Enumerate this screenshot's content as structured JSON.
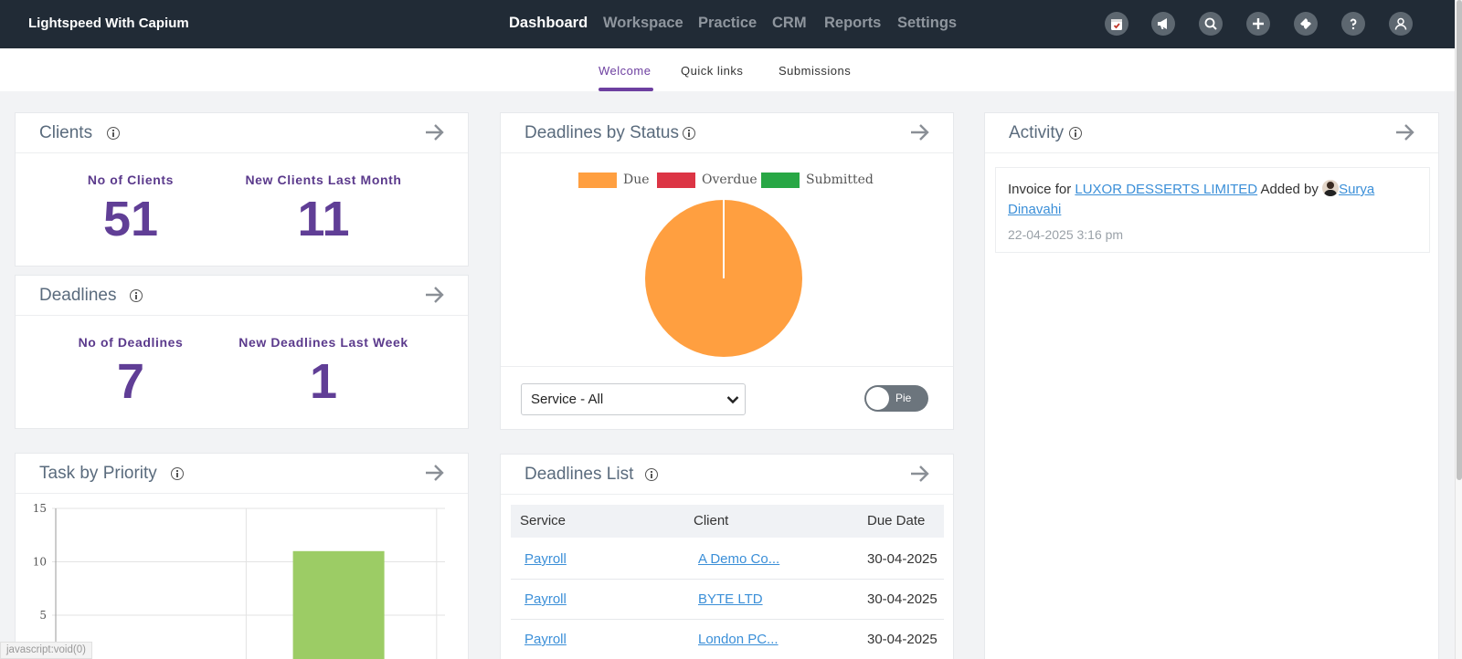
{
  "app": {
    "brand": "Lightspeed With Capium"
  },
  "nav": {
    "items": [
      {
        "label": "Dashboard",
        "active": true
      },
      {
        "label": "Workspace",
        "active": false
      },
      {
        "label": "Practice",
        "active": false
      },
      {
        "label": "CRM",
        "active": false
      },
      {
        "label": "Reports",
        "active": false
      },
      {
        "label": "Settings",
        "active": false
      }
    ],
    "icons": [
      "calendar-icon",
      "megaphone-icon",
      "search-icon",
      "plus-icon",
      "ticket-icon",
      "help-icon",
      "user-icon"
    ]
  },
  "subtabs": {
    "welcome": "Welcome",
    "quick_links": "Quick links",
    "submissions": "Submissions",
    "active": "Welcome"
  },
  "clients": {
    "title": "Clients",
    "no_label": "No of Clients",
    "no_value": "51",
    "new_label": "New Clients Last Month",
    "new_value": "11"
  },
  "deadlines": {
    "title": "Deadlines",
    "no_label": "No of Deadlines",
    "no_value": "7",
    "new_label": "New Deadlines Last Week",
    "new_value": "1"
  },
  "status_chart": {
    "title": "Deadlines by Status",
    "legend": [
      {
        "label": "Due",
        "color": "#ff9f40"
      },
      {
        "label": "Overdue",
        "color": "#dc3545"
      },
      {
        "label": "Submitted",
        "color": "#28a745"
      }
    ],
    "service_filter": "Service - All",
    "toggle_label": "Pie"
  },
  "task_priority": {
    "title": "Task by Priority",
    "bar_color": "#9ccc65"
  },
  "deadlines_list": {
    "title": "Deadlines List",
    "columns": [
      "Service",
      "Client",
      "Due Date"
    ],
    "rows": [
      {
        "service": "Payroll",
        "client": "A Demo Co...",
        "due": "30-04-2025"
      },
      {
        "service": "Payroll",
        "client": "BYTE LTD",
        "due": "30-04-2025"
      },
      {
        "service": "Payroll",
        "client": "London PC...",
        "due": "30-04-2025"
      }
    ]
  },
  "activity": {
    "title": "Activity",
    "prefix": "Invoice for",
    "company": "LUXOR DESSERTS LIMITED",
    "added_by": "Added by",
    "user": "Surya Dinavahi",
    "timestamp": "22-04-2025 3:16 pm"
  },
  "chart_data": [
    {
      "type": "pie",
      "title": "Deadlines by Status",
      "categories": [
        "Due",
        "Overdue",
        "Submitted"
      ],
      "values": [
        7,
        0,
        0
      ],
      "colors": [
        "#ff9f40",
        "#dc3545",
        "#28a745"
      ],
      "legend": "top"
    },
    {
      "type": "bar",
      "title": "Task by Priority",
      "categories": [
        "",
        ""
      ],
      "values": [
        0,
        11
      ],
      "ylim": [
        0,
        15
      ],
      "yticks": [
        5,
        10,
        15
      ],
      "grid": true
    }
  ],
  "statusbar": {
    "text": "javascript:void(0)"
  }
}
